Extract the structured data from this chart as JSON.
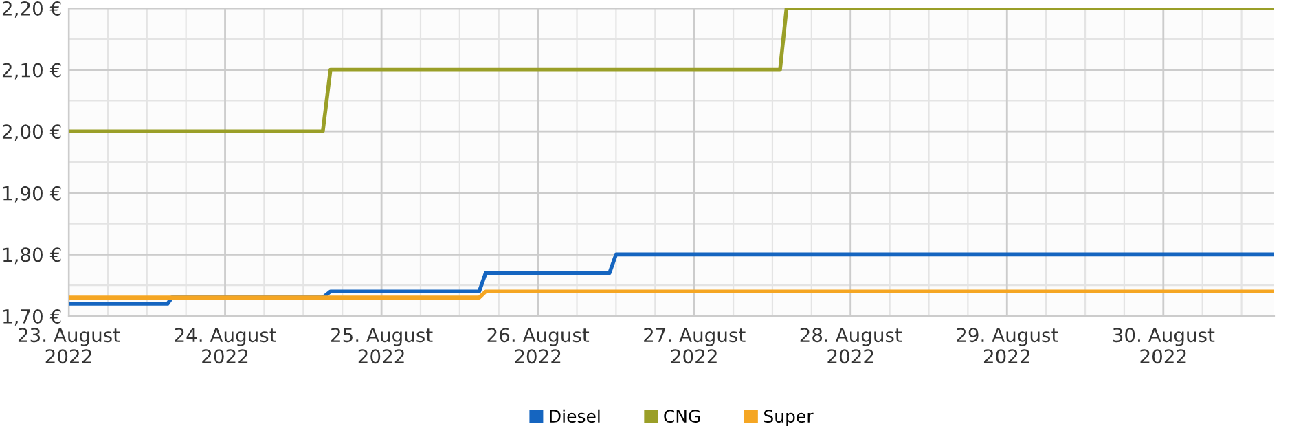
{
  "chart_data": {
    "type": "line",
    "series": [
      {
        "name": "Diesel",
        "color": "#1565c0",
        "x": [
          "2022-08-23T00:00",
          "2022-08-23T15:10",
          "2022-08-23T15:50",
          "2022-08-24T15:00",
          "2022-08-24T16:10",
          "2022-08-25T15:00",
          "2022-08-25T16:00",
          "2022-08-26T11:00",
          "2022-08-26T12:00",
          "2022-08-30T17:00"
        ],
        "values": [
          1.72,
          1.72,
          1.73,
          1.73,
          1.74,
          1.74,
          1.77,
          1.77,
          1.8,
          1.8
        ]
      },
      {
        "name": "CNG",
        "color": "#9a9f28",
        "x": [
          "2022-08-23T00:00",
          "2022-08-24T15:00",
          "2022-08-24T16:10",
          "2022-08-27T13:10",
          "2022-08-27T14:10",
          "2022-08-30T17:00"
        ],
        "values": [
          2.0,
          2.0,
          2.1,
          2.1,
          2.2,
          2.2
        ]
      },
      {
        "name": "Super",
        "color": "#f5a623",
        "x": [
          "2022-08-23T00:00",
          "2022-08-25T15:00",
          "2022-08-25T16:00",
          "2022-08-30T17:00"
        ],
        "values": [
          1.73,
          1.73,
          1.74,
          1.74
        ]
      }
    ],
    "xlim": [
      "2022-08-23T00:00",
      "2022-08-30T17:00"
    ],
    "xticks": [
      {
        "value": "2022-08-23",
        "label": "23. August\n2022"
      },
      {
        "value": "2022-08-23T06:00",
        "label": null
      },
      {
        "value": "2022-08-23T12:00",
        "label": null
      },
      {
        "value": "2022-08-23T18:00",
        "label": null
      },
      {
        "value": "2022-08-24",
        "label": "24. August\n2022"
      },
      {
        "value": "2022-08-24T06:00",
        "label": null
      },
      {
        "value": "2022-08-24T12:00",
        "label": null
      },
      {
        "value": "2022-08-24T18:00",
        "label": null
      },
      {
        "value": "2022-08-25",
        "label": "25. August\n2022"
      },
      {
        "value": "2022-08-25T06:00",
        "label": null
      },
      {
        "value": "2022-08-25T12:00",
        "label": null
      },
      {
        "value": "2022-08-25T18:00",
        "label": null
      },
      {
        "value": "2022-08-26",
        "label": "26. August\n2022"
      },
      {
        "value": "2022-08-26T06:00",
        "label": null
      },
      {
        "value": "2022-08-26T12:00",
        "label": null
      },
      {
        "value": "2022-08-26T18:00",
        "label": null
      },
      {
        "value": "2022-08-27",
        "label": "27. August\n2022"
      },
      {
        "value": "2022-08-27T06:00",
        "label": null
      },
      {
        "value": "2022-08-27T12:00",
        "label": null
      },
      {
        "value": "2022-08-27T18:00",
        "label": null
      },
      {
        "value": "2022-08-28",
        "label": "28. August\n2022"
      },
      {
        "value": "2022-08-28T06:00",
        "label": null
      },
      {
        "value": "2022-08-28T12:00",
        "label": null
      },
      {
        "value": "2022-08-28T18:00",
        "label": null
      },
      {
        "value": "2022-08-29",
        "label": "29. August\n2022"
      },
      {
        "value": "2022-08-29T06:00",
        "label": null
      },
      {
        "value": "2022-08-29T12:00",
        "label": null
      },
      {
        "value": "2022-08-29T18:00",
        "label": null
      },
      {
        "value": "2022-08-30",
        "label": "30. August\n2022"
      },
      {
        "value": "2022-08-30T06:00",
        "label": null
      },
      {
        "value": "2022-08-30T12:00",
        "label": null
      }
    ],
    "ylim": [
      1.7,
      2.2
    ],
    "yticks": [
      {
        "value": 1.7,
        "label": "1,70 €"
      },
      {
        "value": 1.75,
        "label": null
      },
      {
        "value": 1.8,
        "label": "1,80 €"
      },
      {
        "value": 1.85,
        "label": null
      },
      {
        "value": 1.9,
        "label": "1,90 €"
      },
      {
        "value": 1.95,
        "label": null
      },
      {
        "value": 2.0,
        "label": "2,00 €"
      },
      {
        "value": 2.05,
        "label": null
      },
      {
        "value": 2.1,
        "label": "2,10 €"
      },
      {
        "value": 2.15,
        "label": null
      },
      {
        "value": 2.2,
        "label": "2,20 €"
      }
    ],
    "grid": true,
    "legend": "bottom",
    "marker": "none",
    "line_style": "solid"
  }
}
